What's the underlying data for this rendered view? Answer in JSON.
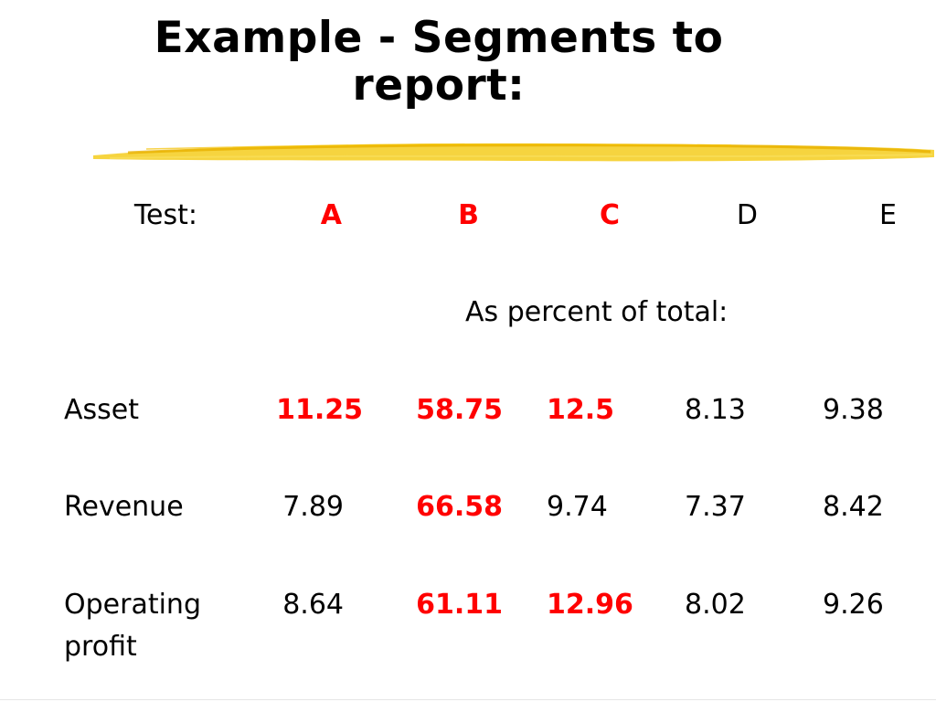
{
  "title": {
    "line1": "Example - Segments to",
    "line2": "report:"
  },
  "colors": {
    "highlight": "#ff0000",
    "brush_stroke": "#f2c21a"
  },
  "table": {
    "test_label": "Test:",
    "columns": [
      {
        "label": "A",
        "highlighted": true
      },
      {
        "label": "B",
        "highlighted": true
      },
      {
        "label": "C",
        "highlighted": true
      },
      {
        "label": "D",
        "highlighted": false
      },
      {
        "label": "E",
        "highlighted": false
      }
    ],
    "subheader": "As percent of total:",
    "rows": [
      {
        "label_line1": "Asset",
        "label_line2": "",
        "values": [
          "11.25",
          "58.75",
          "12.5",
          "8.13",
          "9.38"
        ],
        "highlighted": [
          true,
          true,
          true,
          false,
          false
        ]
      },
      {
        "label_line1": "Revenue",
        "label_line2": "",
        "values": [
          "7.89",
          "66.58",
          "9.74",
          "7.37",
          "8.42"
        ],
        "highlighted": [
          false,
          true,
          false,
          false,
          false
        ]
      },
      {
        "label_line1": "Operating",
        "label_line2": "profit",
        "values": [
          "8.64",
          "61.11",
          "12.96",
          "8.02",
          "9.26"
        ],
        "highlighted": [
          false,
          true,
          true,
          false,
          false
        ]
      }
    ]
  }
}
